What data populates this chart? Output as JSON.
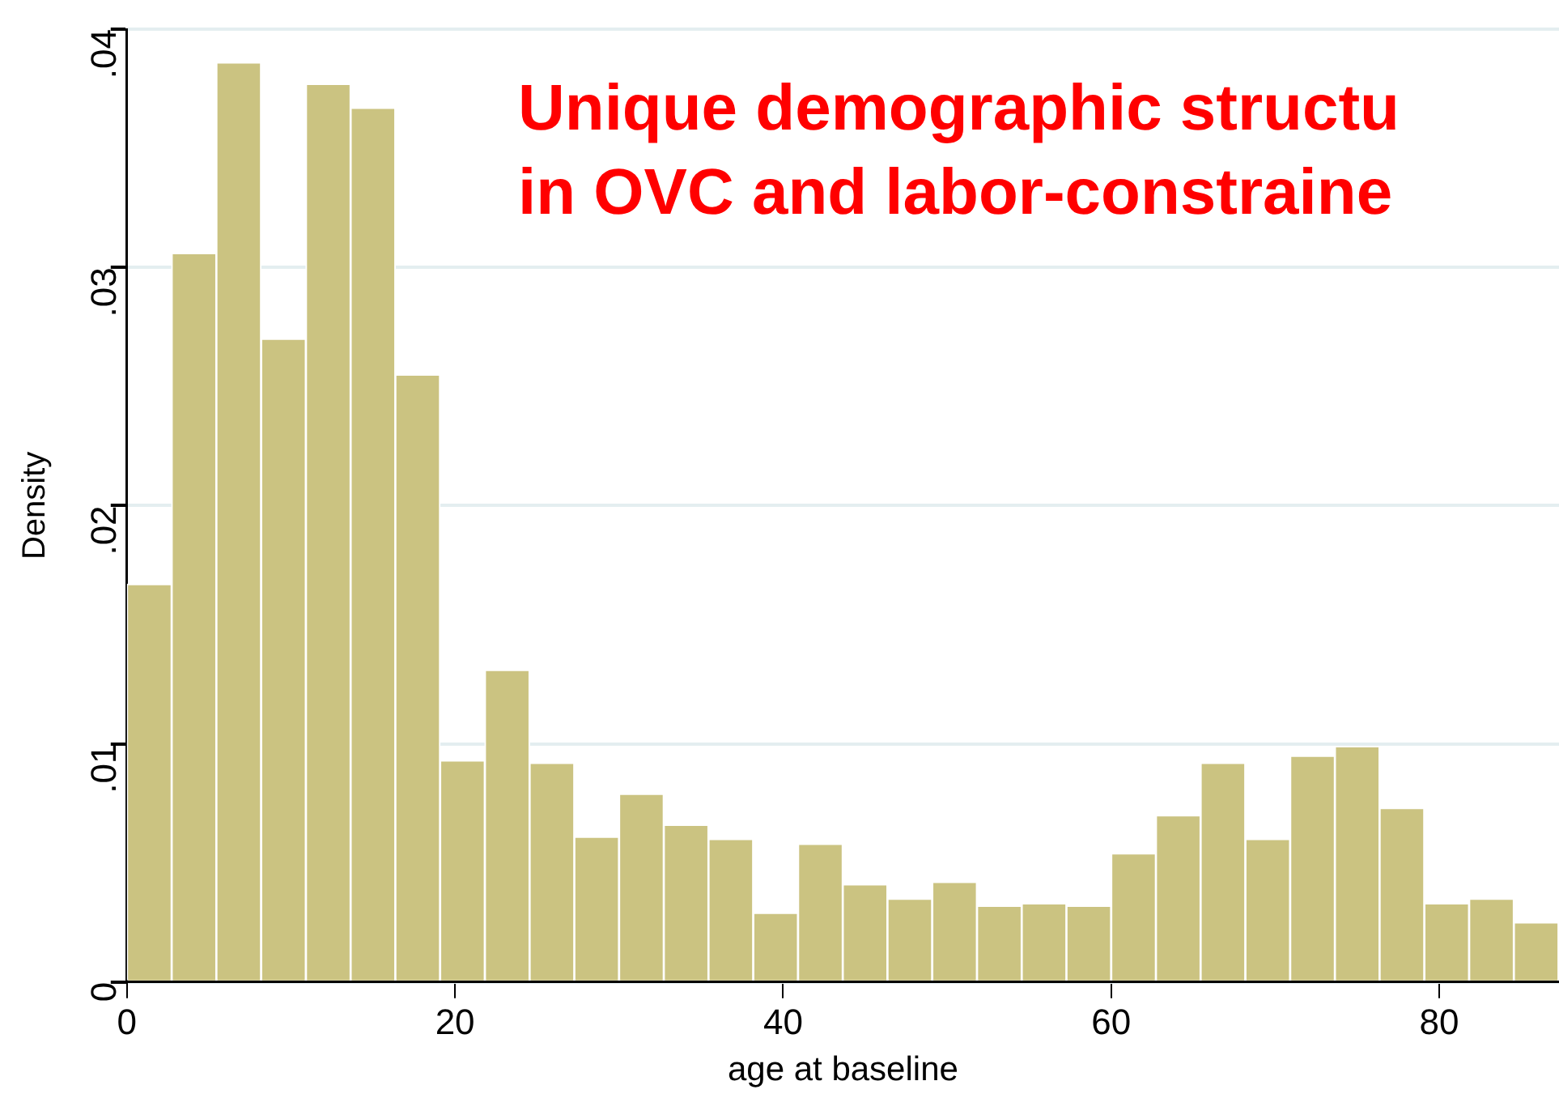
{
  "chart_data": {
    "type": "histogram",
    "annotations": [
      "Unique demographic structu",
      "in OVC and labor-constraine"
    ],
    "xlabel": "age at baseline",
    "ylabel": "Density",
    "bins": [
      0,
      2.73,
      5.45,
      8.18,
      10.91,
      13.64,
      16.36,
      19.09,
      21.82,
      24.55,
      27.27,
      30,
      32.73,
      35.45,
      38.18,
      40.91,
      43.64,
      46.36,
      49.09,
      51.82,
      54.55,
      57.27,
      60,
      62.73,
      65.45,
      68.18,
      70.91,
      73.64,
      76.36,
      79.09,
      81.82,
      84.55,
      87.27
    ],
    "values": [
      0.0167,
      0.0306,
      0.0386,
      0.027,
      0.0377,
      0.0367,
      0.0255,
      0.0093,
      0.0131,
      0.0092,
      0.0061,
      0.0079,
      0.0066,
      0.006,
      0.0029,
      0.0058,
      0.0041,
      0.0035,
      0.0042,
      0.0032,
      0.0033,
      0.0032,
      0.0054,
      0.007,
      0.0092,
      0.006,
      0.0095,
      0.0099,
      0.0073,
      0.0033,
      0.0035,
      0.0025
    ],
    "color": "#cbc381",
    "xlim": [
      0,
      87.3
    ],
    "xticks": [
      0,
      20,
      40,
      60,
      80
    ],
    "ylim": [
      0,
      0.04
    ],
    "yticks": [
      {
        "value": 0,
        "label": "0"
      },
      {
        "value": 0.01,
        "label": ".01"
      },
      {
        "value": 0.02,
        "label": ".02"
      },
      {
        "value": 0.03,
        "label": ".03"
      },
      {
        "value": 0.04,
        "label": ".04"
      }
    ],
    "grid": "y"
  }
}
